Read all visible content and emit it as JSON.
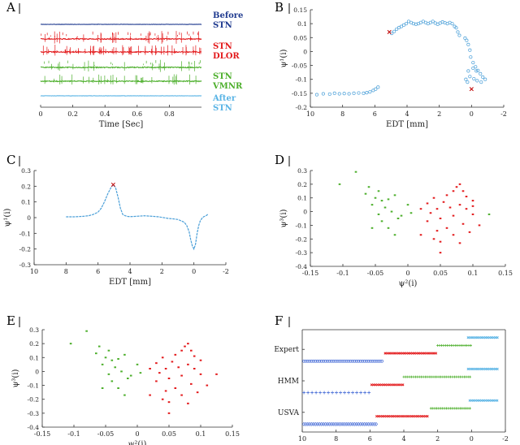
{
  "figure": {
    "panels": [
      {
        "letter": "A"
      },
      {
        "letter": "B"
      },
      {
        "letter": "C"
      },
      {
        "letter": "D"
      },
      {
        "letter": "E"
      },
      {
        "letter": "F"
      }
    ]
  },
  "colors": {
    "before": "#1f3a8f",
    "dlor": "#e31a1c",
    "vmnr": "#4daf2c",
    "after": "#5ab4e5",
    "curve": "#4a9fd8",
    "marker": "#c00000",
    "axis": "#333333"
  },
  "chart_data": [
    {
      "panel": "A",
      "type": "line",
      "xlabel": "Time [Sec]",
      "xlim": [
        0,
        1
      ],
      "xticks": [
        0,
        0.2,
        0.4,
        0.6,
        0.8
      ],
      "xticklabels": [
        "0",
        "0.2",
        "0.4",
        "0.6",
        "0.8"
      ],
      "series": [
        {
          "name": "Before STN",
          "labels": [
            "Before",
            "STN"
          ],
          "color": "#1f3a8f",
          "amp": 0.2,
          "spikes": 0
        },
        {
          "name": "STN DLOR",
          "labels": [
            "STN",
            "DLOR"
          ],
          "color": "#e31a1c",
          "amp": 0.6,
          "spikes": 55
        },
        {
          "name": "STN VMNR",
          "labels": [
            "STN",
            "VMNR"
          ],
          "color": "#4daf2c",
          "amp": 0.6,
          "spikes": 30
        },
        {
          "name": "After STN",
          "labels": [
            "After",
            "STN"
          ],
          "color": "#5ab4e5",
          "amp": 0.2,
          "spikes": 0
        }
      ]
    },
    {
      "panel": "B",
      "type": "scatter",
      "xlabel": "EDT [mm]",
      "ylabel": "ψ¹(i)",
      "xlim": [
        10,
        -2
      ],
      "ylim": [
        -0.2,
        0.15
      ],
      "xticks": [
        10,
        8,
        6,
        4,
        2,
        0,
        -2
      ],
      "xticklabels": [
        "10",
        "8",
        "6",
        "4",
        "2",
        "0",
        "-2"
      ],
      "yticks": [
        0.15,
        0.1,
        0.05,
        0,
        -0.05,
        -0.1,
        -0.15,
        -0.2
      ],
      "yticklabels": [
        "0.15",
        "0.1",
        "0.05",
        "0",
        "-0.05",
        "-0.1",
        "-0.15",
        "-0.2"
      ],
      "points": [
        [
          9.6,
          -0.155
        ],
        [
          9.2,
          -0.152
        ],
        [
          8.8,
          -0.153
        ],
        [
          8.5,
          -0.15
        ],
        [
          8.2,
          -0.152
        ],
        [
          7.9,
          -0.151
        ],
        [
          7.6,
          -0.152
        ],
        [
          7.3,
          -0.15
        ],
        [
          7.0,
          -0.149
        ],
        [
          6.7,
          -0.15
        ],
        [
          6.5,
          -0.148
        ],
        [
          6.3,
          -0.145
        ],
        [
          6.1,
          -0.14
        ],
        [
          5.95,
          -0.135
        ],
        [
          5.8,
          -0.128
        ],
        [
          4.95,
          0.065
        ],
        [
          4.8,
          0.072
        ],
        [
          4.65,
          0.08
        ],
        [
          4.5,
          0.086
        ],
        [
          4.35,
          0.09
        ],
        [
          4.2,
          0.095
        ],
        [
          4.05,
          0.1
        ],
        [
          3.9,
          0.108
        ],
        [
          3.75,
          0.104
        ],
        [
          3.6,
          0.1
        ],
        [
          3.45,
          0.098
        ],
        [
          3.3,
          0.1
        ],
        [
          3.15,
          0.104
        ],
        [
          3.0,
          0.108
        ],
        [
          2.85,
          0.104
        ],
        [
          2.7,
          0.1
        ],
        [
          2.55,
          0.104
        ],
        [
          2.4,
          0.108
        ],
        [
          2.25,
          0.102
        ],
        [
          2.1,
          0.098
        ],
        [
          1.95,
          0.102
        ],
        [
          1.8,
          0.106
        ],
        [
          1.65,
          0.103
        ],
        [
          1.5,
          0.1
        ],
        [
          1.35,
          0.104
        ],
        [
          1.2,
          0.1
        ],
        [
          1.05,
          0.09
        ],
        [
          0.95,
          0.085
        ],
        [
          0.85,
          0.07
        ],
        [
          0.75,
          0.058
        ],
        [
          0.4,
          0.048
        ],
        [
          0.3,
          0.04
        ],
        [
          0.2,
          0.025
        ],
        [
          0.1,
          0.005
        ],
        [
          0.05,
          -0.02
        ],
        [
          -0.1,
          -0.04
        ],
        [
          -0.25,
          -0.055
        ],
        [
          -0.4,
          -0.068
        ],
        [
          -0.55,
          -0.08
        ],
        [
          -0.7,
          -0.092
        ],
        [
          -0.85,
          -0.1
        ],
        [
          -0.6,
          -0.11
        ],
        [
          -0.35,
          -0.105
        ],
        [
          -0.15,
          -0.098
        ],
        [
          0.1,
          -0.09
        ],
        [
          0.2,
          -0.07
        ],
        [
          0.35,
          -0.1
        ],
        [
          0.25,
          -0.11
        ],
        [
          -0.1,
          -0.06
        ],
        [
          -0.3,
          -0.07
        ]
      ],
      "markers": [
        [
          5.1,
          0.07
        ],
        [
          0.0,
          -0.135
        ]
      ]
    },
    {
      "panel": "C",
      "type": "line",
      "xlabel": "EDT [mm]",
      "ylabel": "ψ¹(i)",
      "xlim": [
        10,
        -2
      ],
      "ylim": [
        -0.3,
        0.3
      ],
      "xticks": [
        10,
        8,
        6,
        4,
        2,
        0,
        -2
      ],
      "xticklabels": [
        "10",
        "8",
        "6",
        "4",
        "2",
        "0",
        "-2"
      ],
      "yticks": [
        0.3,
        0.2,
        0.1,
        0,
        -0.1,
        -0.2,
        -0.3
      ],
      "yticklabels": [
        "0.3",
        "0.2",
        "0.1",
        "0",
        "-0.1",
        "-0.2",
        "-0.3"
      ],
      "x": [
        8,
        7.5,
        7,
        6.6,
        6.3,
        6,
        5.8,
        5.6,
        5.4,
        5.2,
        5.05,
        4.9,
        4.75,
        4.6,
        4.45,
        4.3,
        4.15,
        4,
        3.7,
        3.4,
        3.1,
        2.8,
        2.5,
        2.2,
        1.9,
        1.6,
        1.3,
        1.0,
        0.8,
        0.6,
        0.45,
        0.3,
        0.2,
        0.1,
        0.0,
        -0.1,
        -0.2,
        -0.3,
        -0.4,
        -0.5,
        -0.6,
        -0.7,
        -0.8,
        -0.9
      ],
      "values": [
        0.005,
        0.005,
        0.008,
        0.012,
        0.02,
        0.035,
        0.06,
        0.1,
        0.15,
        0.19,
        0.21,
        0.19,
        0.13,
        0.06,
        0.02,
        0.012,
        0.008,
        0.006,
        0.008,
        0.01,
        0.012,
        0.01,
        0.008,
        0.005,
        0.0,
        -0.005,
        -0.008,
        -0.012,
        -0.02,
        -0.03,
        -0.05,
        -0.09,
        -0.14,
        -0.18,
        -0.2,
        -0.17,
        -0.1,
        -0.05,
        -0.02,
        -0.005,
        0.005,
        0.01,
        0.015,
        0.025
      ],
      "markers": [
        [
          5.05,
          0.21
        ]
      ]
    },
    {
      "panel": "D",
      "type": "scatter",
      "xlabel": "ψ²(i)",
      "ylabel": "ψ³(i)",
      "xlim": [
        -0.15,
        0.15
      ],
      "ylim": [
        -0.4,
        0.3
      ],
      "xticks": [
        -0.15,
        -0.1,
        -0.05,
        0,
        0.05,
        0.1,
        0.15
      ],
      "xticklabels": [
        "-0.15",
        "-0.1",
        "-0.05",
        "0",
        "0.05",
        "0.1",
        "0.15"
      ],
      "yticks": [
        0.3,
        0.2,
        0.1,
        0,
        -0.1,
        -0.2,
        -0.3,
        -0.4
      ],
      "yticklabels": [
        "0.3",
        "0.2",
        "0.1",
        "0",
        "-0.1",
        "-0.2",
        "-0.3",
        "-0.4"
      ],
      "series": [
        {
          "color": "#4daf2c",
          "points": [
            [
              -0.08,
              0.29
            ],
            [
              -0.105,
              0.2
            ],
            [
              -0.06,
              0.18
            ],
            [
              -0.045,
              0.15
            ],
            [
              -0.065,
              0.13
            ],
            [
              -0.05,
              0.1
            ],
            [
              -0.03,
              0.09
            ],
            [
              -0.02,
              0.12
            ],
            [
              -0.04,
              0.08
            ],
            [
              -0.055,
              0.05
            ],
            [
              -0.035,
              0.03
            ],
            [
              -0.045,
              -0.02
            ],
            [
              -0.025,
              0.0
            ],
            [
              -0.04,
              -0.07
            ],
            [
              -0.015,
              -0.05
            ],
            [
              -0.055,
              -0.12
            ],
            [
              -0.03,
              -0.12
            ],
            [
              0.0,
              0.05
            ],
            [
              -0.01,
              -0.03
            ],
            [
              0.005,
              -0.01
            ],
            [
              -0.02,
              -0.17
            ],
            [
              0.125,
              -0.02
            ]
          ]
        },
        {
          "color": "#e31a1c",
          "points": [
            [
              0.08,
              0.2
            ],
            [
              0.075,
              0.18
            ],
            [
              0.085,
              0.15
            ],
            [
              0.07,
              0.15
            ],
            [
              0.06,
              0.12
            ],
            [
              0.09,
              0.11
            ],
            [
              0.04,
              0.1
            ],
            [
              0.055,
              0.07
            ],
            [
              0.1,
              0.08
            ],
            [
              0.08,
              0.05
            ],
            [
              0.065,
              0.03
            ],
            [
              0.045,
              0.02
            ],
            [
              0.02,
              0.02
            ],
            [
              0.035,
              -0.01
            ],
            [
              0.09,
              0.02
            ],
            [
              0.07,
              -0.03
            ],
            [
              0.05,
              -0.05
            ],
            [
              0.1,
              -0.02
            ],
            [
              0.03,
              -0.07
            ],
            [
              0.085,
              -0.09
            ],
            [
              0.06,
              -0.12
            ],
            [
              0.045,
              -0.14
            ],
            [
              0.02,
              -0.17
            ],
            [
              0.07,
              -0.17
            ],
            [
              0.095,
              -0.15
            ],
            [
              0.04,
              -0.2
            ],
            [
              0.05,
              -0.22
            ],
            [
              0.08,
              -0.23
            ],
            [
              0.05,
              -0.3
            ],
            [
              0.11,
              -0.1
            ],
            [
              0.1,
              0.04
            ],
            [
              0.03,
              0.06
            ]
          ]
        }
      ]
    },
    {
      "panel": "E",
      "type": "scatter",
      "xlabel": "ψ²(i)",
      "ylabel": "ψ³(i)",
      "xlim": [
        -0.15,
        0.15
      ],
      "ylim": [
        -0.4,
        0.3
      ],
      "xticks": [
        -0.15,
        -0.1,
        -0.05,
        0,
        0.05,
        0.1,
        0.15
      ],
      "xticklabels": [
        "-0.15",
        "-0.1",
        "-0.05",
        "0",
        "0.05",
        "0.1",
        "0.15"
      ],
      "yticks": [
        0.3,
        0.2,
        0.1,
        0,
        -0.1,
        -0.2,
        -0.3,
        -0.4
      ],
      "yticklabels": [
        "0.3",
        "0.2",
        "0.1",
        "0",
        "-0.1",
        "-0.2",
        "-0.3",
        "-0.4"
      ],
      "series": [
        {
          "color": "#4daf2c",
          "points": [
            [
              -0.08,
              0.29
            ],
            [
              -0.105,
              0.2
            ],
            [
              -0.06,
              0.18
            ],
            [
              -0.045,
              0.15
            ],
            [
              -0.065,
              0.13
            ],
            [
              -0.05,
              0.1
            ],
            [
              -0.03,
              0.09
            ],
            [
              -0.02,
              0.12
            ],
            [
              -0.04,
              0.08
            ],
            [
              -0.055,
              0.05
            ],
            [
              -0.035,
              0.03
            ],
            [
              -0.045,
              -0.02
            ],
            [
              -0.025,
              0.0
            ],
            [
              -0.04,
              -0.07
            ],
            [
              -0.015,
              -0.05
            ],
            [
              -0.055,
              -0.12
            ],
            [
              -0.03,
              -0.12
            ],
            [
              0.0,
              0.05
            ],
            [
              -0.01,
              -0.03
            ],
            [
              0.005,
              -0.01
            ],
            [
              -0.02,
              -0.17
            ]
          ]
        },
        {
          "color": "#e31a1c",
          "points": [
            [
              0.08,
              0.2
            ],
            [
              0.075,
              0.18
            ],
            [
              0.085,
              0.15
            ],
            [
              0.07,
              0.15
            ],
            [
              0.06,
              0.12
            ],
            [
              0.09,
              0.11
            ],
            [
              0.04,
              0.1
            ],
            [
              0.055,
              0.07
            ],
            [
              0.1,
              0.08
            ],
            [
              0.08,
              0.05
            ],
            [
              0.065,
              0.03
            ],
            [
              0.045,
              0.02
            ],
            [
              0.02,
              0.02
            ],
            [
              0.035,
              -0.01
            ],
            [
              0.09,
              0.02
            ],
            [
              0.07,
              -0.03
            ],
            [
              0.05,
              -0.05
            ],
            [
              0.1,
              -0.02
            ],
            [
              0.03,
              -0.07
            ],
            [
              0.085,
              -0.09
            ],
            [
              0.06,
              -0.12
            ],
            [
              0.045,
              -0.14
            ],
            [
              0.02,
              -0.17
            ],
            [
              0.07,
              -0.17
            ],
            [
              0.095,
              -0.15
            ],
            [
              0.04,
              -0.2
            ],
            [
              0.05,
              -0.22
            ],
            [
              0.08,
              -0.23
            ],
            [
              0.05,
              -0.3
            ],
            [
              0.11,
              -0.1
            ],
            [
              0.125,
              -0.02
            ],
            [
              0.03,
              0.06
            ]
          ]
        }
      ]
    },
    {
      "panel": "F",
      "type": "scatter",
      "xlabel": "EDT [mm]",
      "xlim": [
        10,
        -2
      ],
      "xticks": [
        10,
        8,
        6,
        4,
        2,
        0,
        -2
      ],
      "xticklabels": [
        "10",
        "8",
        "6",
        "4",
        "2",
        "0",
        "-2"
      ],
      "ytickrows": [
        {
          "label": "Expert",
          "rows": [
            1,
            2,
            3,
            4
          ]
        },
        {
          "label": "HMM",
          "rows": [
            5,
            6,
            7,
            8
          ]
        },
        {
          "label": "USVA",
          "rows": [
            9,
            10,
            11,
            12
          ]
        }
      ],
      "rowcount": 13,
      "segments": [
        {
          "row": 1,
          "start": 0.2,
          "end": -1.6,
          "color": "#5ab4e5",
          "symbol": "x"
        },
        {
          "row": 2,
          "start": 2.0,
          "end": 0.0,
          "color": "#4daf2c",
          "symbol": "*"
        },
        {
          "row": 3,
          "start": 5.1,
          "end": 2.1,
          "color": "#e31a1c",
          "symbol": "x"
        },
        {
          "row": 4,
          "start": 9.9,
          "end": 5.2,
          "color": "#4a6fd8",
          "symbol": "o"
        },
        {
          "row": 5,
          "start": 0.2,
          "end": -1.6,
          "color": "#5ab4e5",
          "symbol": "x"
        },
        {
          "row": 6,
          "start": 4.0,
          "end": 0.0,
          "color": "#4daf2c",
          "symbol": "*"
        },
        {
          "row": 7,
          "start": 5.9,
          "end": 4.0,
          "color": "#e31a1c",
          "symbol": "x"
        },
        {
          "row": 8,
          "start": 9.9,
          "end": 6.0,
          "color": "#4a6fd8",
          "symbol": "+"
        },
        {
          "row": 9,
          "start": 0.1,
          "end": -1.6,
          "color": "#5ab4e5",
          "symbol": "x"
        },
        {
          "row": 10,
          "start": 2.4,
          "end": 0.0,
          "color": "#4daf2c",
          "symbol": "*"
        },
        {
          "row": 11,
          "start": 5.6,
          "end": 2.5,
          "color": "#e31a1c",
          "symbol": "x"
        },
        {
          "row": 12,
          "start": 9.9,
          "end": 5.6,
          "color": "#4a6fd8",
          "symbol": "d"
        }
      ]
    }
  ]
}
